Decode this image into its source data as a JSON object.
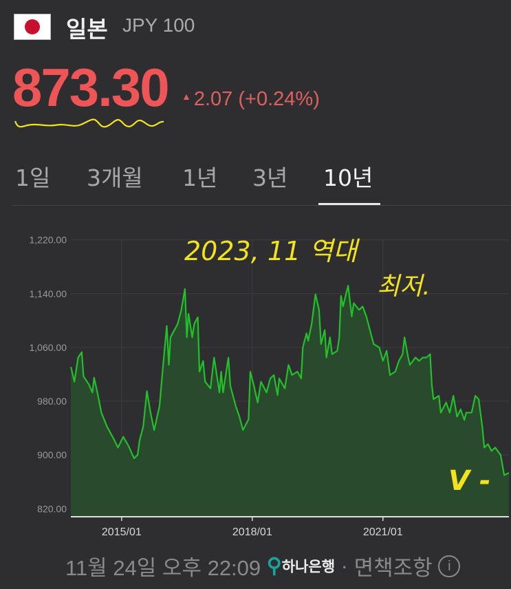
{
  "header": {
    "flag_icon": "japan-flag-icon",
    "country": "일본",
    "currency_code": "JPY 100"
  },
  "quote": {
    "price": "873.30",
    "direction": "up",
    "change": "2.07",
    "change_pct": "(+0.24%)",
    "price_color": "#ee5557"
  },
  "tabs": [
    {
      "label": "1일",
      "active": false
    },
    {
      "label": "3개월",
      "active": false
    },
    {
      "label": "1년",
      "active": false
    },
    {
      "label": "3년",
      "active": false
    },
    {
      "label": "10년",
      "active": true
    }
  ],
  "annotations": {
    "line1": "2023, 11 역대",
    "line2": "최저.",
    "mark": "V -",
    "color": "#f2e31c"
  },
  "footer": {
    "timestamp": "11월 24일 오후 22:09",
    "bank_name": "하나은행",
    "separator": "·",
    "disclaimer": "면책조항",
    "info_icon": "info-icon"
  },
  "chart_data": {
    "type": "area",
    "line_color": "#22c02a",
    "fill_color": "#2a4a2e",
    "grid": true,
    "xlim": [
      "2013-11-01",
      "2023-11-24"
    ],
    "ylim": [
      808,
      1232
    ],
    "yticks": [
      820,
      900,
      980,
      1060,
      1140,
      1220
    ],
    "ytick_labels": [
      "820.00",
      "900.00",
      "980.00",
      "1,060.00",
      "1,140.00",
      "1,220.00"
    ],
    "xticks": [
      "2015-01-01",
      "2018-01-01",
      "2021-01-01"
    ],
    "xtick_labels": [
      "2015/01",
      "2018/01",
      "2021/01"
    ],
    "x": [
      "2013-11-01",
      "2013-12-01",
      "2014-01-01",
      "2014-02-01",
      "2014-02-15",
      "2014-04-01",
      "2014-05-01",
      "2014-05-15",
      "2014-06-15",
      "2014-07-15",
      "2014-09-01",
      "2014-11-01",
      "2014-12-01",
      "2015-01-15",
      "2015-03-01",
      "2015-04-15",
      "2015-05-15",
      "2015-06-01",
      "2015-07-01",
      "2015-08-01",
      "2015-09-01",
      "2015-10-01",
      "2015-11-15",
      "2015-12-15",
      "2016-01-15",
      "2016-02-01",
      "2016-02-15",
      "2016-04-15",
      "2016-05-15",
      "2016-06-15",
      "2016-07-01",
      "2016-07-15",
      "2016-08-15",
      "2016-09-01",
      "2016-10-01",
      "2016-10-15",
      "2016-11-15",
      "2016-12-01",
      "2017-01-15",
      "2017-02-15",
      "2017-04-01",
      "2017-04-15",
      "2017-05-01",
      "2017-06-15",
      "2017-07-01",
      "2017-08-15",
      "2017-09-15",
      "2017-10-15",
      "2017-12-01",
      "2017-12-15",
      "2018-01-15",
      "2018-02-15",
      "2018-03-15",
      "2018-05-01",
      "2018-06-01",
      "2018-07-01",
      "2018-08-01",
      "2018-08-15",
      "2018-10-01",
      "2018-11-01",
      "2018-12-01",
      "2019-01-15",
      "2019-02-15",
      "2019-03-01",
      "2019-04-01",
      "2019-04-15",
      "2019-05-15",
      "2019-06-15",
      "2019-07-15",
      "2019-08-01",
      "2019-09-01",
      "2019-09-15",
      "2019-10-15",
      "2019-11-01",
      "2019-12-15",
      "2020-01-01",
      "2020-01-15",
      "2020-02-01",
      "2020-03-01",
      "2020-03-15",
      "2020-04-15",
      "2020-05-01",
      "2020-06-15",
      "2020-07-15",
      "2020-08-15",
      "2020-09-15",
      "2020-10-15",
      "2020-12-01",
      "2021-01-01",
      "2021-02-01",
      "2021-03-01",
      "2021-04-15",
      "2021-05-15",
      "2021-06-15",
      "2021-07-01",
      "2021-08-01",
      "2021-08-15",
      "2021-10-01",
      "2021-11-01",
      "2021-12-01",
      "2022-01-01",
      "2022-02-01",
      "2022-02-15",
      "2022-03-01",
      "2022-04-15",
      "2022-05-01",
      "2022-06-15",
      "2022-07-15",
      "2022-08-15",
      "2022-09-15",
      "2022-10-15",
      "2022-11-15",
      "2022-12-01",
      "2023-01-15",
      "2023-02-15",
      "2023-03-15",
      "2023-04-15",
      "2023-05-01",
      "2023-06-01",
      "2023-07-01",
      "2023-08-01",
      "2023-09-15",
      "2023-10-15",
      "2023-11-24"
    ],
    "values": [
      1031,
      1009,
      1045,
      1053,
      1017,
      1005,
      993,
      1015,
      990,
      963,
      942,
      922,
      911,
      927,
      913,
      895,
      900,
      922,
      942,
      995,
      962,
      937,
      973,
      1034,
      1092,
      1034,
      1075,
      1095,
      1115,
      1147,
      1075,
      1110,
      1075,
      1095,
      1105,
      1024,
      1040,
      1009,
      999,
      1045,
      993,
      1024,
      993,
      1045,
      1003,
      973,
      957,
      937,
      953,
      1024,
      1003,
      978,
      1009,
      993,
      1014,
      1019,
      989,
      1014,
      999,
      1034,
      1019,
      1024,
      1014,
      1060,
      1081,
      1070,
      1096,
      1139,
      1116,
      1065,
      1086,
      1045,
      1075,
      1050,
      1055,
      1075,
      1137,
      1121,
      1142,
      1152,
      1106,
      1126,
      1116,
      1121,
      1106,
      1085,
      1065,
      1060,
      1040,
      1055,
      1019,
      1024,
      1040,
      1050,
      1075,
      1045,
      1034,
      1045,
      1040,
      1045,
      1045,
      1050,
      1004,
      983,
      988,
      963,
      978,
      963,
      988,
      957,
      968,
      952,
      963,
      963,
      988,
      983,
      942,
      911,
      916,
      906,
      911,
      900,
      870,
      873.3
    ]
  }
}
